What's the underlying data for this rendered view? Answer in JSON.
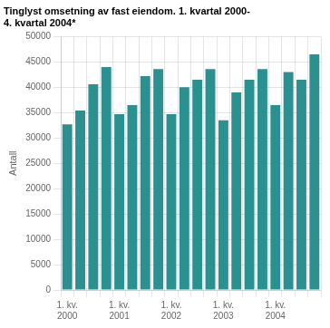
{
  "chart_data": {
    "type": "bar",
    "title": "Tinglyst omsetning av fast eiendom. 1. kvartal 2000-\n4. kvartal 2004*",
    "y_label": "Antall",
    "categories": [
      "1. kv.\n2000",
      null,
      null,
      null,
      "1. kv.\n2001",
      null,
      null,
      null,
      "1. kv.\n2002",
      null,
      null,
      null,
      "1. kv.\n2003",
      null,
      null,
      null,
      "1. kv.\n2004",
      null,
      null,
      null
    ],
    "values": [
      32700,
      35400,
      40600,
      44000,
      34700,
      36500,
      42200,
      43600,
      34700,
      40000,
      41500,
      43600,
      33500,
      39000,
      41500,
      43600,
      36500,
      43000,
      41500,
      46500
    ],
    "color": "#2a9090",
    "ylim": [
      0,
      50000
    ],
    "yticks": [
      0,
      5000,
      10000,
      15000,
      20000,
      25000,
      30000,
      35000,
      40000,
      45000,
      50000
    ],
    "grid": true
  }
}
